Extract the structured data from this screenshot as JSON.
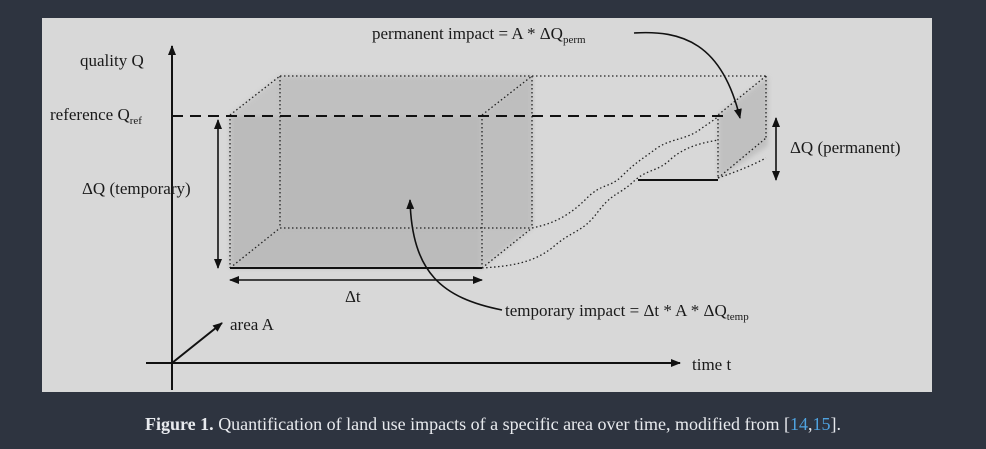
{
  "diagram": {
    "labels": {
      "quality_q": "quality Q",
      "reference_q": "reference Q",
      "reference_q_sub": "ref",
      "delta_q_temporary": "ΔQ (temporary)",
      "delta_q_permanent": "ΔQ (permanent)",
      "delta_t": "Δt",
      "area_a": "area A",
      "time_t": "time t",
      "permanent_impact": "permanent impact = A * ΔQ",
      "permanent_impact_sub": "perm",
      "temporary_impact": "temporary impact = Δt * A * ΔQ",
      "temporary_impact_sub": "temp"
    }
  },
  "caption": {
    "label": "Figure 1.",
    "text": " Quantification of land use impacts of a specific area over time, modified from [",
    "ref_1": "14",
    "ref_sep": ",",
    "ref_2": "15",
    "close": "]."
  },
  "colors": {
    "background": "#2e3440",
    "figure_panel": "#d8d8d8",
    "link": "#4fa3e0"
  }
}
